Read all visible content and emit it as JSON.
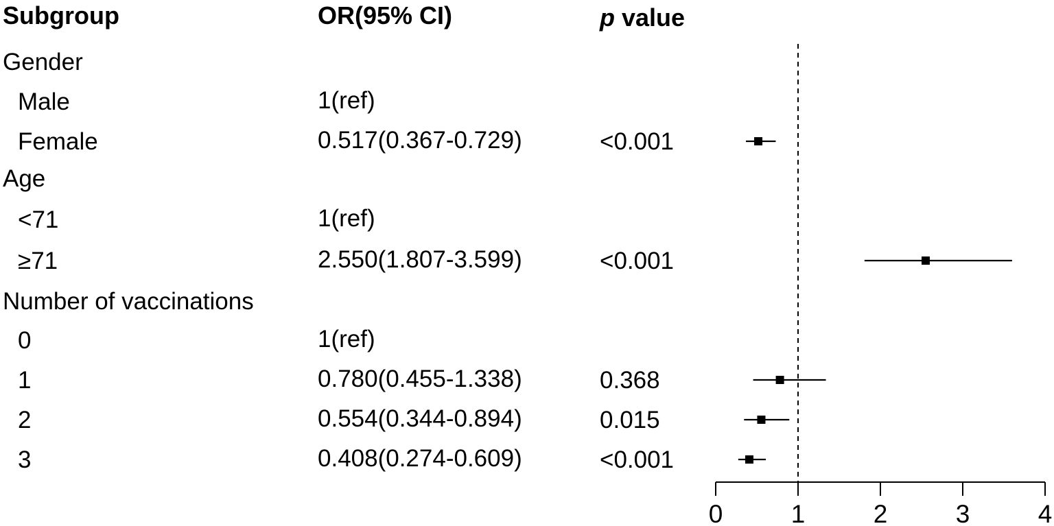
{
  "chart_data": {
    "type": "forest",
    "columns": {
      "subgroup": "Subgroup",
      "or": "OR(95% CI)",
      "p_italic": "p",
      "p_rest": " value"
    },
    "rows": [
      {
        "label": "Gender",
        "indent": false,
        "or_text": "",
        "p_text": "",
        "estimate": null,
        "lower": null,
        "upper": null
      },
      {
        "label": "Male",
        "indent": true,
        "or_text": "1(ref)",
        "p_text": "",
        "estimate": null,
        "lower": null,
        "upper": null
      },
      {
        "label": "Female",
        "indent": true,
        "or_text": "0.517(0.367-0.729)",
        "p_text": "<0.001",
        "estimate": 0.517,
        "lower": 0.367,
        "upper": 0.729
      },
      {
        "label": "Age",
        "indent": false,
        "or_text": "",
        "p_text": "",
        "estimate": null,
        "lower": null,
        "upper": null
      },
      {
        "label": "<71",
        "indent": true,
        "or_text": "1(ref)",
        "p_text": "",
        "estimate": null,
        "lower": null,
        "upper": null
      },
      {
        "label": "≥71",
        "indent": true,
        "or_text": "2.550(1.807-3.599)",
        "p_text": "<0.001",
        "estimate": 2.55,
        "lower": 1.807,
        "upper": 3.599
      },
      {
        "label": "Number of vaccinations",
        "indent": false,
        "or_text": "",
        "p_text": "",
        "estimate": null,
        "lower": null,
        "upper": null
      },
      {
        "label": "0",
        "indent": true,
        "or_text": "1(ref)",
        "p_text": "",
        "estimate": null,
        "lower": null,
        "upper": null
      },
      {
        "label": "1",
        "indent": true,
        "or_text": "0.780(0.455-1.338)",
        "p_text": "0.368",
        "estimate": 0.78,
        "lower": 0.455,
        "upper": 1.338
      },
      {
        "label": "2",
        "indent": true,
        "or_text": "0.554(0.344-0.894)",
        "p_text": "0.015",
        "estimate": 0.554,
        "lower": 0.344,
        "upper": 0.894
      },
      {
        "label": "3",
        "indent": true,
        "or_text": "0.408(0.274-0.609)",
        "p_text": "<0.001",
        "estimate": 0.408,
        "lower": 0.274,
        "upper": 0.609
      }
    ],
    "x_axis": {
      "ticks": [
        "0",
        "1",
        "2",
        "3",
        "4"
      ],
      "range": [
        0,
        4
      ],
      "reference_line": 1
    },
    "grid": false,
    "legend": "none"
  }
}
